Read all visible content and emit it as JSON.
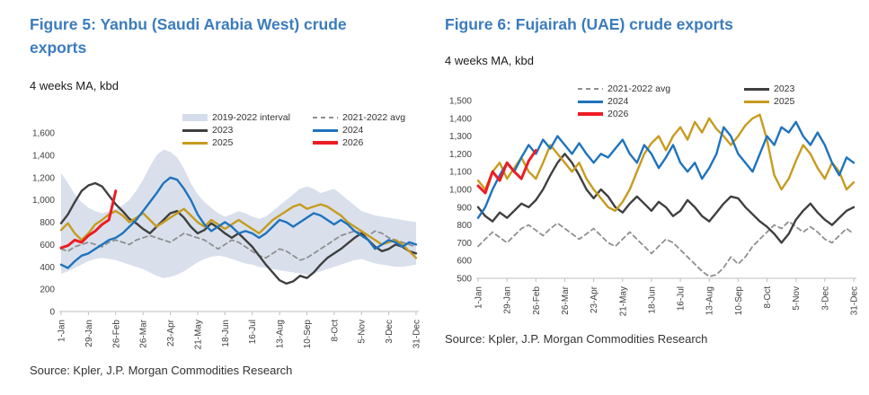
{
  "theme": {
    "title_color": "#3B7CBD",
    "text_color": "#333333",
    "axis_text_color": "#404040",
    "axis_line_color": "#BFBFBF",
    "background": "#FFFFFF"
  },
  "figures": [
    {
      "title": "Figure 5: Yanbu (Saudi Arabia West) crude exports",
      "subtitle": "4 weeks MA, kbd",
      "source": "Source: Kpler, J.P. Morgan Commodities Research"
    },
    {
      "title": "Figure 6: Fujairah (UAE) crude exports",
      "subtitle": "4 weeks MA, kbd",
      "source": "Source: Kpler, J.P. Morgan Commodities Research"
    }
  ],
  "chart_data": [
    {
      "type": "line",
      "title": "Figure 5: Yanbu (Saudi Arabia West) crude exports",
      "ylabel": "kbd (4 weeks MA)",
      "ylim": [
        0,
        1600
      ],
      "ytick_step": 200,
      "n_weeks": 53,
      "x_tick_weeks": [
        0,
        4,
        8,
        12,
        16,
        20,
        24,
        28,
        32,
        36,
        40,
        44,
        48,
        52
      ],
      "x_tick_labels": [
        "1-Jan",
        "29-Jan",
        "26-Feb",
        "26-Mar",
        "23-Apr",
        "21-May",
        "18-Jun",
        "16-Jul",
        "13-Aug",
        "10-Sep",
        "8-Oct",
        "5-Nov",
        "3-Dec",
        "31-Dec"
      ],
      "band": {
        "name": "2019-2022 interval",
        "color": "#D5DDEA",
        "lower": [
          340,
          360,
          390,
          420,
          450,
          470,
          480,
          470,
          460,
          440,
          420,
          400,
          380,
          350,
          320,
          300,
          310,
          330,
          360,
          400,
          440,
          470,
          490,
          500,
          490,
          470,
          450,
          430,
          420,
          400,
          390,
          380,
          370,
          360,
          350,
          340,
          330,
          340,
          360,
          380,
          400,
          420,
          440,
          460,
          470,
          450,
          430,
          420,
          410,
          400,
          400,
          410,
          420
        ],
        "upper": [
          1240,
          1150,
          1050,
          980,
          930,
          900,
          880,
          900,
          920,
          950,
          1000,
          1080,
          1180,
          1300,
          1400,
          1450,
          1430,
          1380,
          1280,
          1150,
          1050,
          980,
          930,
          880,
          850,
          870,
          900,
          880,
          850,
          830,
          850,
          900,
          950,
          1000,
          1050,
          1100,
          1120,
          1100,
          1060,
          1080,
          1100,
          1050,
          1000,
          950,
          900,
          880,
          860,
          850,
          840,
          830,
          820,
          810,
          800
        ]
      },
      "series": [
        {
          "name": "2021-2022 avg",
          "color": "#8F8F8F",
          "dash": "5,4",
          "width": 1.8,
          "values": [
            560,
            540,
            580,
            600,
            620,
            600,
            580,
            620,
            640,
            620,
            600,
            640,
            660,
            680,
            660,
            640,
            620,
            660,
            700,
            680,
            660,
            640,
            600,
            560,
            600,
            640,
            620,
            580,
            540,
            500,
            480,
            520,
            560,
            540,
            500,
            460,
            480,
            520,
            560,
            600,
            640,
            680,
            700,
            720,
            700,
            680,
            720,
            700,
            660,
            640,
            620,
            600,
            580
          ]
        },
        {
          "name": "2023",
          "color": "#3F3F3F",
          "dash": "",
          "width": 2.4,
          "values": [
            790,
            870,
            980,
            1080,
            1130,
            1150,
            1120,
            1040,
            960,
            900,
            830,
            790,
            740,
            700,
            760,
            820,
            880,
            900,
            840,
            760,
            700,
            730,
            790,
            750,
            700,
            660,
            700,
            640,
            580,
            500,
            420,
            350,
            280,
            250,
            270,
            320,
            300,
            350,
            420,
            480,
            520,
            560,
            610,
            660,
            700,
            640,
            580,
            540,
            560,
            600,
            580,
            540,
            520
          ]
        },
        {
          "name": "2025",
          "color": "#C79B1E",
          "dash": "",
          "width": 2.4,
          "values": [
            730,
            790,
            700,
            640,
            700,
            780,
            820,
            870,
            900,
            860,
            800,
            840,
            880,
            820,
            760,
            800,
            840,
            880,
            920,
            860,
            800,
            760,
            820,
            780,
            740,
            780,
            820,
            780,
            740,
            700,
            760,
            820,
            860,
            900,
            940,
            960,
            920,
            940,
            960,
            940,
            900,
            860,
            800,
            760,
            720,
            680,
            640,
            600,
            620,
            640,
            600,
            540,
            480
          ]
        },
        {
          "name": "2024",
          "color": "#1E73BE",
          "dash": "",
          "width": 2.4,
          "values": [
            420,
            390,
            450,
            500,
            520,
            560,
            600,
            640,
            660,
            700,
            760,
            820,
            900,
            980,
            1060,
            1150,
            1200,
            1180,
            1100,
            1000,
            870,
            780,
            720,
            760,
            800,
            760,
            700,
            720,
            700,
            660,
            700,
            760,
            820,
            800,
            760,
            800,
            840,
            880,
            860,
            820,
            780,
            820,
            780,
            720,
            680,
            640,
            560,
            600,
            640,
            620,
            580,
            620,
            600
          ]
        },
        {
          "name": "2026",
          "color": "#EC1C24",
          "dash": "",
          "width": 3,
          "values": [
            570,
            590,
            640,
            620,
            680,
            720,
            780,
            820,
            1080
          ]
        }
      ],
      "legend": {
        "placement": "overlay",
        "columns": [
          [
            "2019-2022 interval",
            "2023",
            "2025"
          ],
          [
            "2021-2022 avg",
            "2024",
            "2026"
          ]
        ]
      }
    },
    {
      "type": "line",
      "title": "Figure 6: Fujairah (UAE) crude exports",
      "ylabel": "kbd (4 weeks MA)",
      "ylim": [
        500,
        1500
      ],
      "ytick_step": 100,
      "n_weeks": 53,
      "x_tick_weeks": [
        0,
        4,
        8,
        12,
        16,
        20,
        24,
        28,
        32,
        36,
        40,
        44,
        48,
        52
      ],
      "x_tick_labels": [
        "1-Jan",
        "29-Jan",
        "26-Feb",
        "26-Mar",
        "23-Apr",
        "21-May",
        "18-Jun",
        "16-Jul",
        "13-Aug",
        "10-Sep",
        "8-Oct",
        "5-Nov",
        "3-Dec",
        "31-Dec"
      ],
      "band": null,
      "series": [
        {
          "name": "2021-2022 avg",
          "color": "#8F8F8F",
          "dash": "5,4",
          "width": 1.8,
          "values": [
            680,
            720,
            760,
            730,
            700,
            740,
            780,
            800,
            770,
            740,
            780,
            810,
            780,
            750,
            720,
            750,
            780,
            740,
            700,
            680,
            720,
            760,
            720,
            680,
            640,
            680,
            720,
            700,
            660,
            620,
            580,
            540,
            510,
            520,
            560,
            620,
            580,
            620,
            680,
            720,
            760,
            800,
            780,
            820,
            790,
            760,
            790,
            760,
            720,
            700,
            740,
            780,
            750
          ]
        },
        {
          "name": "2023",
          "color": "#3F3F3F",
          "dash": "",
          "width": 2.4,
          "values": [
            900,
            850,
            820,
            870,
            840,
            880,
            920,
            900,
            940,
            1000,
            1080,
            1150,
            1200,
            1150,
            1080,
            1000,
            950,
            1000,
            960,
            900,
            870,
            920,
            960,
            920,
            880,
            930,
            900,
            850,
            880,
            940,
            900,
            850,
            820,
            870,
            920,
            960,
            950,
            900,
            860,
            820,
            790,
            750,
            700,
            750,
            830,
            880,
            920,
            870,
            830,
            800,
            840,
            880,
            900
          ]
        },
        {
          "name": "2025",
          "color": "#C79B1E",
          "dash": "",
          "width": 2.4,
          "values": [
            1050,
            1000,
            1100,
            1150,
            1060,
            1120,
            1180,
            1100,
            1060,
            1150,
            1250,
            1200,
            1150,
            1100,
            1150,
            1060,
            1000,
            950,
            900,
            880,
            930,
            1000,
            1100,
            1200,
            1260,
            1300,
            1220,
            1300,
            1350,
            1280,
            1380,
            1320,
            1400,
            1340,
            1300,
            1250,
            1300,
            1360,
            1400,
            1420,
            1280,
            1080,
            1000,
            1060,
            1160,
            1250,
            1200,
            1120,
            1060,
            1150,
            1100,
            1000,
            1040
          ]
        },
        {
          "name": "2024",
          "color": "#1E73BE",
          "dash": "",
          "width": 2.4,
          "values": [
            840,
            900,
            1000,
            1080,
            1150,
            1100,
            1180,
            1250,
            1200,
            1280,
            1230,
            1300,
            1250,
            1200,
            1260,
            1200,
            1150,
            1200,
            1180,
            1230,
            1280,
            1200,
            1150,
            1250,
            1200,
            1120,
            1180,
            1250,
            1150,
            1100,
            1150,
            1060,
            1120,
            1200,
            1350,
            1300,
            1200,
            1150,
            1100,
            1200,
            1300,
            1250,
            1350,
            1320,
            1380,
            1300,
            1250,
            1320,
            1250,
            1150,
            1080,
            1180,
            1150
          ]
        },
        {
          "name": "2026",
          "color": "#EC1C24",
          "dash": "",
          "width": 3,
          "values": [
            1020,
            980,
            1100,
            1050,
            1150,
            1100,
            1060,
            1160,
            1220
          ]
        }
      ],
      "legend": {
        "placement": "top",
        "columns": [
          [
            "2021-2022 avg",
            "2024",
            "2026"
          ],
          [
            "2023",
            "2025"
          ]
        ]
      }
    }
  ]
}
